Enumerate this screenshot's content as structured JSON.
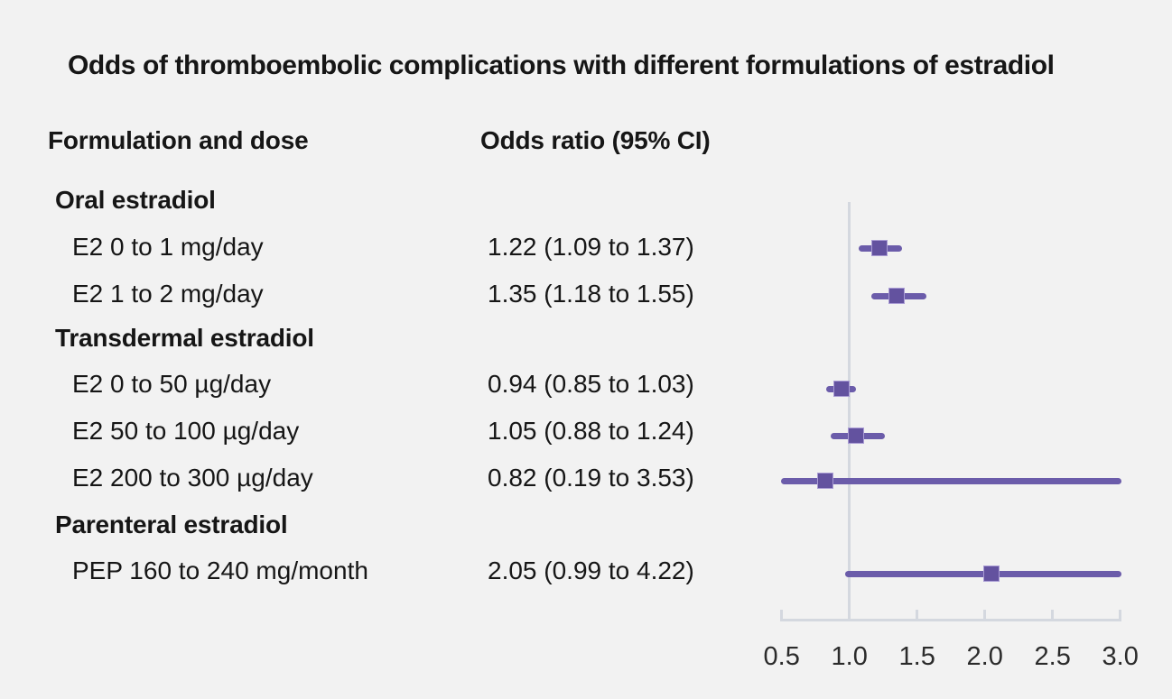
{
  "title": "Odds of thromboembolic complications with different formulations of estradiol",
  "table": {
    "col1_header": "Formulation and dose",
    "col2_header": "Odds ratio (95% CI)"
  },
  "colors": {
    "background": "#f2f2f2",
    "text": "#161616",
    "ci_line_purple": "#6b5caa",
    "marker_fill_purple": "#63529f",
    "marker_rim_lavender": "#a99bd4",
    "axis_gray": "#d4d8df",
    "tick_label_gray": "#2b2b2b"
  },
  "chart_data": {
    "type": "scatter",
    "subtype": "forest-plot",
    "title": "Odds of thromboembolic complications with different formulations of estradiol",
    "xlabel": "Odds ratio (95% CI)",
    "xlim": [
      0.5,
      3.0
    ],
    "xticks": [
      "0.5",
      "1.0",
      "1.5",
      "2.0",
      "2.5",
      "3.0"
    ],
    "xtick_values": [
      0.5,
      1.0,
      1.5,
      2.0,
      2.5,
      3.0
    ],
    "reference_line": 1.0,
    "grid": false,
    "legend": "none",
    "groups": [
      {
        "group": "Oral estradiol",
        "items": [
          {
            "label": "E2 0 to 1 mg/day",
            "display": "1.22 (1.09 to 1.37)",
            "or": 1.22,
            "ci_low": 1.09,
            "ci_high": 1.37
          },
          {
            "label": "E2 1 to 2 mg/day",
            "display": "1.35 (1.18 to 1.55)",
            "or": 1.35,
            "ci_low": 1.18,
            "ci_high": 1.55
          }
        ]
      },
      {
        "group": "Transdermal estradiol",
        "items": [
          {
            "label": "E2 0 to 50 µg/day",
            "display": "0.94 (0.85 to 1.03)",
            "or": 0.94,
            "ci_low": 0.85,
            "ci_high": 1.03
          },
          {
            "label": "E2 50 to 100 µg/day",
            "display": "1.05 (0.88 to 1.24)",
            "or": 1.05,
            "ci_low": 0.88,
            "ci_high": 1.24
          },
          {
            "label": "E2 200 to 300 µg/day",
            "display": "0.82 (0.19 to 3.53)",
            "or": 0.82,
            "ci_low": 0.19,
            "ci_high": 3.53
          }
        ]
      },
      {
        "group": "Parenteral estradiol",
        "items": [
          {
            "label": "PEP 160 to 240 mg/month",
            "display": "2.05 (0.99 to 4.22)",
            "or": 2.05,
            "ci_low": 0.99,
            "ci_high": 4.22
          }
        ]
      }
    ]
  }
}
